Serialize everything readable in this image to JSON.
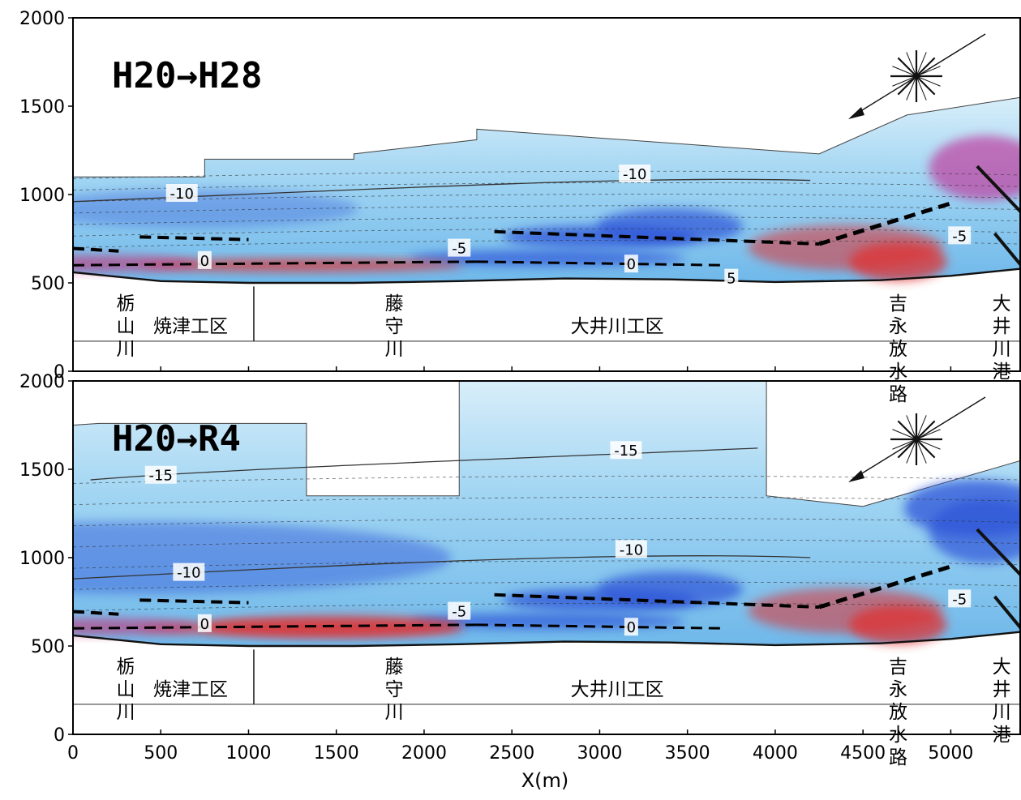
{
  "x_axis": {
    "label": "X(m)",
    "range": [
      0,
      5400
    ],
    "ticks": [
      0,
      500,
      1000,
      1500,
      2000,
      2500,
      3000,
      3500,
      4000,
      4500,
      5000
    ]
  },
  "y_axis": {
    "range": [
      0,
      2000
    ],
    "ticks": [
      0,
      500,
      1000,
      1500,
      2000
    ]
  },
  "colors": {
    "erosion_blue": "#2f55d8",
    "light_blue": "#8fd0f0",
    "accretion_red": "#e03030",
    "contour": "#333333",
    "dashed_line": "#000000"
  },
  "panels": [
    {
      "title": "H20→H28",
      "contour_labels": [
        {
          "text": "-10",
          "x": 620,
          "y": 1000
        },
        {
          "text": "-10",
          "x": 3200,
          "y": 1110
        },
        {
          "text": "-5",
          "x": 2200,
          "y": 690
        },
        {
          "text": "-5",
          "x": 5050,
          "y": 760
        },
        {
          "text": "0",
          "x": 750,
          "y": 620
        },
        {
          "text": "0",
          "x": 3180,
          "y": 600
        },
        {
          "text": "5",
          "x": 3750,
          "y": 520
        }
      ],
      "places": [
        {
          "text": "栃山川",
          "x": 300
        },
        {
          "text": "焼津工区",
          "x": 670
        },
        {
          "text": "藤守川",
          "x": 1830
        },
        {
          "text": "大井川工区",
          "x": 3100
        },
        {
          "text": "吉永放水路",
          "x": 4700
        },
        {
          "text": "大井川港",
          "x": 5290
        }
      ]
    },
    {
      "title": "H20→R4",
      "contour_labels": [
        {
          "text": "-15",
          "x": 500,
          "y": 1460
        },
        {
          "text": "-15",
          "x": 3150,
          "y": 1600
        },
        {
          "text": "-10",
          "x": 660,
          "y": 910
        },
        {
          "text": "-10",
          "x": 3180,
          "y": 1040
        },
        {
          "text": "-5",
          "x": 2200,
          "y": 690
        },
        {
          "text": "-5",
          "x": 5050,
          "y": 760
        },
        {
          "text": "0",
          "x": 750,
          "y": 620
        },
        {
          "text": "0",
          "x": 3180,
          "y": 600
        }
      ],
      "places": [
        {
          "text": "栃山川",
          "x": 300
        },
        {
          "text": "焼津工区",
          "x": 670
        },
        {
          "text": "藤守川",
          "x": 1830
        },
        {
          "text": "大井川工区",
          "x": 3100
        },
        {
          "text": "吉永放水路",
          "x": 4700
        },
        {
          "text": "大井川港",
          "x": 5290
        }
      ]
    }
  ]
}
